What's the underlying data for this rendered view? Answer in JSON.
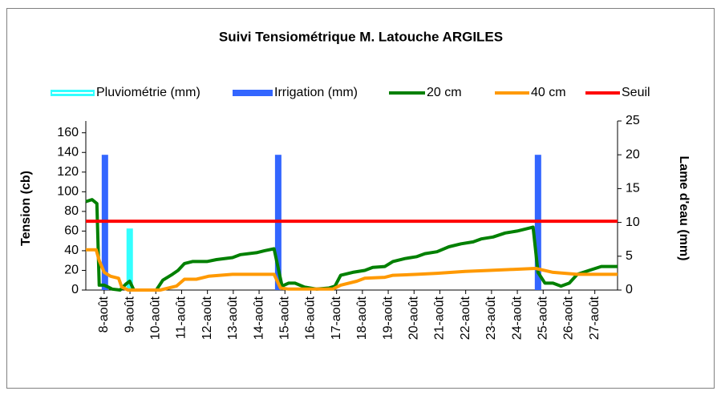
{
  "chart_data": {
    "type": "line",
    "title": "Suivi Tensiométrique M. Latouche ARGILES",
    "y_label": "Tension (cb)",
    "y2_label": "Lame d'eau (mm)",
    "xlim": [
      7.29,
      27.88
    ],
    "xticks": [
      {
        "value": 8,
        "label": "8-août"
      },
      {
        "value": 9,
        "label": "9-août"
      },
      {
        "value": 10,
        "label": "10-août"
      },
      {
        "value": 11,
        "label": "11-août"
      },
      {
        "value": 12,
        "label": "12-août"
      },
      {
        "value": 13,
        "label": "13-août"
      },
      {
        "value": 14,
        "label": "14-août"
      },
      {
        "value": 15,
        "label": "15-août"
      },
      {
        "value": 16,
        "label": "16-août"
      },
      {
        "value": 17,
        "label": "17-août"
      },
      {
        "value": 18,
        "label": "18-août"
      },
      {
        "value": 19,
        "label": "19-août"
      },
      {
        "value": 20,
        "label": "20-août"
      },
      {
        "value": 21,
        "label": "21-août"
      },
      {
        "value": 22,
        "label": "22-août"
      },
      {
        "value": 23,
        "label": "23-août"
      },
      {
        "value": 24,
        "label": "24-août"
      },
      {
        "value": 25,
        "label": "25-août"
      },
      {
        "value": 26,
        "label": "26-août"
      },
      {
        "value": 27,
        "label": "27-août"
      }
    ],
    "ylim": [
      0,
      172
    ],
    "yticks": [
      0,
      20,
      40,
      60,
      80,
      100,
      120,
      140,
      160
    ],
    "y2lim": [
      0,
      25
    ],
    "y2ticks": [
      0,
      5,
      10,
      15,
      20,
      25
    ],
    "series": [
      {
        "name": "Pluviométrie (mm)",
        "type": "bar",
        "axis": "y2",
        "color": "#33ffff",
        "x": [
          8.99
        ],
        "values": [
          9.1
        ]
      },
      {
        "name": "Irrigation (mm)",
        "type": "bar",
        "axis": "y2",
        "color": "#3366ff",
        "x": [
          8.03,
          14.74,
          24.8
        ],
        "values": [
          20,
          20,
          20
        ]
      },
      {
        "name": "20 cm",
        "type": "line",
        "color": "#008000",
        "x": [
          7.29,
          7.53,
          7.72,
          7.81,
          8,
          8.16,
          8.31,
          8.62,
          8.84,
          8.99,
          9.15,
          10.02,
          10.27,
          10.64,
          10.86,
          11.11,
          11.42,
          11.98,
          12.35,
          12.97,
          13.28,
          13.9,
          14.21,
          14.58,
          14.71,
          14.89,
          15.14,
          15.39,
          15.76,
          16.23,
          16.7,
          16.94,
          17.16,
          17.63,
          18.09,
          18.4,
          18.87,
          19.18,
          19.65,
          20.11,
          20.42,
          20.89,
          21.35,
          21.82,
          22.29,
          22.6,
          23.06,
          23.53,
          23.99,
          24.46,
          24.61,
          24.8,
          25.07,
          25.38,
          25.69,
          26.01,
          26.32,
          26.78,
          27.25,
          27.88
        ],
        "values": [
          90,
          92,
          88,
          5,
          5,
          3,
          1,
          0,
          6,
          9,
          0,
          0,
          10,
          16,
          20,
          27,
          29,
          29,
          31,
          33,
          36,
          38,
          40,
          42,
          26,
          4,
          7,
          7,
          3,
          1,
          2,
          4,
          15,
          18,
          20,
          23,
          24,
          29,
          32,
          34,
          37,
          39,
          44,
          47,
          49,
          52,
          54,
          58,
          60,
          63,
          64,
          18,
          7,
          7,
          4,
          7,
          16,
          20,
          24,
          24
        ]
      },
      {
        "name": "40 cm",
        "type": "line",
        "color": "#ff9900",
        "x": [
          7.29,
          7.69,
          7.81,
          8,
          8.25,
          8.56,
          8.68,
          8.93,
          10.17,
          10.8,
          11.11,
          11.57,
          12.04,
          12.97,
          13.9,
          14.58,
          14.83,
          15.14,
          16.85,
          17.16,
          17.78,
          18.09,
          18.87,
          19.18,
          20.11,
          20.89,
          21.98,
          22.91,
          23.84,
          24.71,
          25.38,
          26.32,
          27.88
        ],
        "values": [
          41,
          41,
          30,
          18,
          14,
          12,
          3,
          0,
          0,
          4,
          11,
          11,
          14,
          16,
          16,
          16,
          2,
          1,
          1,
          5,
          9,
          12,
          13,
          15,
          16,
          17,
          19,
          20,
          21,
          22,
          18,
          16,
          16
        ]
      },
      {
        "name": "Seuil",
        "type": "line",
        "color": "#ff0000",
        "x": [
          7.29,
          27.88
        ],
        "values": [
          70,
          70
        ]
      }
    ]
  }
}
